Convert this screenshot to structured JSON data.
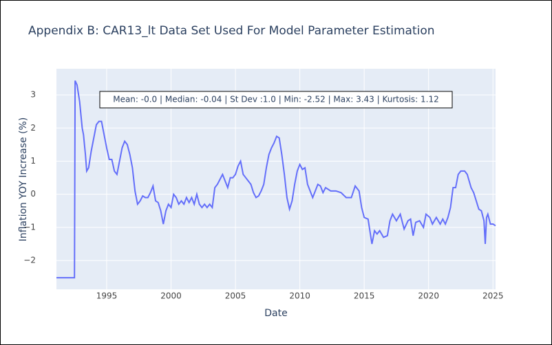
{
  "chart_data": {
    "type": "line",
    "title": "Appendix B: CAR13_lt Data Set Used For Model Parameter Estimation",
    "x_label": "Date",
    "y_label": "Inflation YOY Increase (%)",
    "annotation": "Mean: -0.0 | Median: -0.04 | St Dev :1.0 | Min: -2.52 | Max: 3.43 | Kurtosis: 1.12",
    "color": "#636efa",
    "background": "#e5ecf6",
    "grid": true,
    "x": [
      1991.1,
      1992.5,
      1992.55,
      1992.7,
      1992.9,
      1993.1,
      1993.2,
      1993.35,
      1993.45,
      1993.6,
      1993.8,
      1994.0,
      1994.2,
      1994.4,
      1994.6,
      1994.8,
      1995.0,
      1995.2,
      1995.4,
      1995.6,
      1995.8,
      1996.0,
      1996.2,
      1996.4,
      1996.6,
      1996.8,
      1997.0,
      1997.2,
      1997.4,
      1997.6,
      1997.8,
      1998.0,
      1998.2,
      1998.4,
      1998.6,
      1998.8,
      1999.0,
      1999.2,
      1999.4,
      1999.6,
      1999.8,
      2000.0,
      2000.2,
      2000.4,
      2000.6,
      2000.8,
      2001.0,
      2001.2,
      2001.4,
      2001.6,
      2001.8,
      2002.0,
      2002.2,
      2002.4,
      2002.6,
      2002.8,
      2003.0,
      2003.2,
      2003.4,
      2003.6,
      2003.8,
      2004.0,
      2004.2,
      2004.4,
      2004.6,
      2004.8,
      2005.0,
      2005.2,
      2005.4,
      2005.6,
      2005.8,
      2006.0,
      2006.2,
      2006.4,
      2006.6,
      2006.8,
      2007.0,
      2007.2,
      2007.4,
      2007.6,
      2007.8,
      2008.0,
      2008.2,
      2008.4,
      2008.6,
      2008.8,
      2009.0,
      2009.2,
      2009.4,
      2009.6,
      2009.8,
      2010.0,
      2010.2,
      2010.4,
      2010.6,
      2010.8,
      2011.0,
      2011.2,
      2011.4,
      2011.6,
      2011.8,
      2012.0,
      2012.4,
      2012.8,
      2013.2,
      2013.6,
      2014.0,
      2014.3,
      2014.6,
      2014.8,
      2015.0,
      2015.3,
      2015.6,
      2015.8,
      2016.0,
      2016.2,
      2016.5,
      2016.8,
      2017.0,
      2017.2,
      2017.5,
      2017.8,
      2018.1,
      2018.4,
      2018.6,
      2018.8,
      2019.0,
      2019.3,
      2019.6,
      2019.8,
      2020.1,
      2020.3,
      2020.6,
      2020.9,
      2021.1,
      2021.3,
      2021.5,
      2021.7,
      2021.9,
      2022.1,
      2022.3,
      2022.5,
      2022.8,
      2023.0,
      2023.3,
      2023.5,
      2023.7,
      2023.9,
      2024.1,
      2024.3,
      2024.4,
      2024.5,
      2024.6,
      2024.8,
      2025.0,
      2025.2
    ],
    "values": [
      -2.52,
      -2.52,
      3.43,
      3.3,
      2.8,
      2.0,
      1.8,
      1.2,
      0.7,
      0.8,
      1.3,
      1.7,
      2.1,
      2.2,
      2.2,
      1.8,
      1.4,
      1.05,
      1.05,
      0.7,
      0.6,
      1.0,
      1.4,
      1.6,
      1.5,
      1.2,
      0.8,
      0.1,
      -0.3,
      -0.2,
      -0.05,
      -0.1,
      -0.1,
      0.05,
      0.25,
      -0.2,
      -0.25,
      -0.5,
      -0.9,
      -0.5,
      -0.3,
      -0.4,
      0,
      -0.1,
      -0.3,
      -0.2,
      -0.3,
      -0.1,
      -0.25,
      -0.1,
      -0.3,
      0,
      -0.3,
      -0.4,
      -0.3,
      -0.4,
      -0.3,
      -0.4,
      0.2,
      0.3,
      0.45,
      0.6,
      0.4,
      0.2,
      0.5,
      0.5,
      0.6,
      0.85,
      1.0,
      0.6,
      0.5,
      0.4,
      0.3,
      0.05,
      -0.1,
      -0.05,
      0.1,
      0.3,
      0.8,
      1.2,
      1.4,
      1.55,
      1.75,
      1.7,
      1.2,
      0.6,
      -0.1,
      -0.45,
      -0.2,
      0.3,
      0.7,
      0.9,
      0.75,
      0.8,
      0.3,
      0.1,
      -0.1,
      0.1,
      0.3,
      0.25,
      0.05,
      0.2,
      0.1,
      0.1,
      0.05,
      -0.1,
      -0.1,
      0.25,
      0.1,
      -0.4,
      -0.7,
      -0.75,
      -1.5,
      -1.1,
      -1.2,
      -1.1,
      -1.3,
      -1.25,
      -0.8,
      -0.6,
      -0.8,
      -0.6,
      -1.05,
      -0.8,
      -0.75,
      -1.25,
      -0.85,
      -0.8,
      -1.0,
      -0.6,
      -0.7,
      -0.9,
      -0.7,
      -0.9,
      -0.75,
      -0.9,
      -0.7,
      -0.4,
      0.2,
      0.2,
      0.6,
      0.7,
      0.7,
      0.6,
      0.2,
      0.05,
      -0.2,
      -0.45,
      -0.5,
      -0.8,
      -1.5,
      -0.7,
      -0.6,
      -0.9,
      -0.9,
      -0.95
    ],
    "xlim": [
      1991.1,
      2025.2
    ],
    "xticks": [
      1995,
      2000,
      2005,
      2010,
      2015,
      2020,
      2025
    ],
    "ylim": [
      -2.87,
      3.79
    ],
    "yticks": [
      {
        "value": -2,
        "label": "−2"
      },
      {
        "value": -1,
        "label": "−1"
      },
      0,
      1,
      2,
      3
    ]
  }
}
